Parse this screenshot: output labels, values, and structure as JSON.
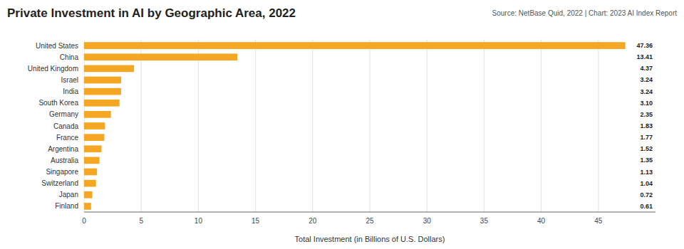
{
  "chart_data": {
    "type": "bar",
    "orientation": "horizontal",
    "title": "Private Investment in AI by Geographic Area, 2022",
    "annotations": [
      "Source: NetBase Quid, 2022 | Chart: 2023 AI Index Report"
    ],
    "xlabel": "Total Investment (in Billions of U.S. Dollars)",
    "categories": [
      "United States",
      "China",
      "United Kingdom",
      "Israel",
      "India",
      "South Korea",
      "Germany",
      "Canada",
      "France",
      "Argentina",
      "Australia",
      "Singapore",
      "Switzerland",
      "Japan",
      "Finland"
    ],
    "values": [
      47.36,
      13.41,
      4.37,
      3.24,
      3.24,
      3.1,
      2.35,
      1.83,
      1.77,
      1.52,
      1.35,
      1.13,
      1.04,
      0.72,
      0.61
    ],
    "value_labels": [
      "47.36",
      "13.41",
      "4.37",
      "3.24",
      "3.24",
      "3.10",
      "2.35",
      "1.83",
      "1.77",
      "1.52",
      "1.35",
      "1.13",
      "1.04",
      "0.72",
      "0.61"
    ],
    "data_labels": true,
    "color": "#f5a623",
    "xlim": [
      0,
      50
    ],
    "xticks": [
      0,
      5,
      10,
      15,
      20,
      25,
      30,
      35,
      40,
      45
    ],
    "grid": true
  }
}
